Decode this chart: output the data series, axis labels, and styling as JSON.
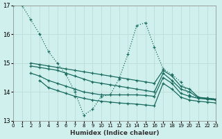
{
  "bg_color": "#cff0ed",
  "grid_color": "#c0deda",
  "line_color": "#1a6b5e",
  "xlabel": "Humidex (Indice chaleur)",
  "ylim": [
    13,
    17
  ],
  "xlim": [
    0,
    23
  ],
  "yticks": [
    13,
    14,
    15,
    16,
    17
  ],
  "xticks": [
    0,
    1,
    2,
    3,
    4,
    5,
    6,
    7,
    8,
    9,
    10,
    11,
    12,
    13,
    14,
    15,
    16,
    17,
    18,
    19,
    20,
    21,
    22,
    23
  ],
  "series": [
    {
      "x": [
        0,
        1,
        2,
        3,
        4,
        5,
        6,
        7,
        8,
        9,
        10,
        11,
        12,
        13,
        14,
        15,
        16,
        17,
        18,
        19,
        20,
        21,
        22,
        23
      ],
      "y": [
        17.0,
        17.0,
        16.5,
        16.0,
        15.4,
        15.0,
        14.6,
        14.0,
        13.2,
        13.4,
        13.85,
        13.9,
        14.45,
        15.3,
        16.3,
        16.4,
        15.55,
        14.8,
        14.6,
        14.35,
        13.88,
        13.78,
        13.78,
        13.75
      ],
      "linestyle": "dotted",
      "marker": "+"
    },
    {
      "x": [
        2,
        3,
        4,
        5,
        6,
        7,
        8,
        9,
        10,
        11,
        12,
        13,
        14,
        15,
        16,
        17,
        18,
        19,
        20,
        21,
        22,
        23
      ],
      "y": [
        15.0,
        14.95,
        14.9,
        14.85,
        14.8,
        14.75,
        14.7,
        14.65,
        14.6,
        14.55,
        14.5,
        14.45,
        14.4,
        14.35,
        14.3,
        14.75,
        14.55,
        14.2,
        14.1,
        13.82,
        13.78,
        13.75
      ],
      "linestyle": "solid",
      "marker": "+"
    },
    {
      "x": [
        2,
        3,
        4,
        5,
        6,
        7,
        8,
        9,
        10,
        11,
        12,
        13,
        14,
        15,
        16,
        17,
        18,
        19,
        20,
        21,
        22,
        23
      ],
      "y": [
        14.9,
        14.85,
        14.8,
        14.75,
        14.65,
        14.55,
        14.45,
        14.35,
        14.3,
        14.25,
        14.2,
        14.15,
        14.1,
        14.05,
        14.0,
        14.65,
        14.4,
        14.1,
        14.0,
        13.8,
        13.78,
        13.75
      ],
      "linestyle": "solid",
      "marker": "+"
    },
    {
      "x": [
        2,
        3,
        4,
        5,
        6,
        7,
        8,
        9,
        10,
        11,
        12,
        13,
        14,
        15,
        16,
        17,
        18,
        19,
        20,
        21,
        22,
        23
      ],
      "y": [
        14.65,
        14.55,
        14.4,
        14.3,
        14.2,
        14.1,
        14.0,
        13.95,
        13.9,
        13.9,
        13.9,
        13.9,
        13.9,
        13.88,
        13.85,
        14.5,
        14.3,
        13.95,
        13.85,
        13.78,
        13.75,
        13.72
      ],
      "linestyle": "solid",
      "marker": "+"
    },
    {
      "x": [
        3,
        4,
        5,
        6,
        7,
        8,
        9,
        10,
        11,
        12,
        13,
        14,
        15,
        16,
        17,
        18,
        19,
        20,
        21,
        22,
        23
      ],
      "y": [
        14.4,
        14.15,
        14.05,
        13.95,
        13.85,
        13.78,
        13.72,
        13.68,
        13.65,
        13.62,
        13.6,
        13.58,
        13.55,
        13.52,
        14.3,
        14.1,
        13.82,
        13.72,
        13.68,
        13.65,
        13.62
      ],
      "linestyle": "solid",
      "marker": "+"
    }
  ]
}
